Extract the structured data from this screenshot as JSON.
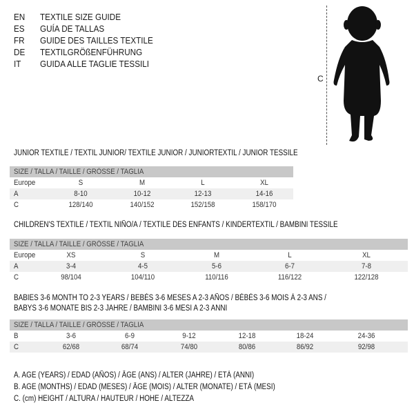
{
  "languages": [
    {
      "code": "EN",
      "title": "TEXTILE SIZE GUIDE"
    },
    {
      "code": "ES",
      "title": "GUÍA DE TALLAS"
    },
    {
      "code": "FR",
      "title": "GUIDE DES TAILLES TEXTILE"
    },
    {
      "code": "DE",
      "title": "TEXTILGRÖßENFÜHRUNG"
    },
    {
      "code": "IT",
      "title": "GUIDA ALLE TAGLIE TESSILI"
    }
  ],
  "figure": {
    "height_label": "C",
    "icon": "baby-silhouette-icon"
  },
  "tables": [
    {
      "heading": [
        "JUNIOR TEXTILE / TEXTIL JUNIOR/ TEXTILE JUNIOR / JUNIORTEXTIL / JUNIOR TESSILE"
      ],
      "header": "SIZE / TALLA / TAILLE / GRÖSSE / TAGLIA",
      "rows": [
        {
          "label": "Europe",
          "values": [
            "S",
            "M",
            "L",
            "XL"
          ]
        },
        {
          "label": "A",
          "values": [
            "8-10",
            "10-12",
            "12-13",
            "14-16"
          ]
        },
        {
          "label": "C",
          "values": [
            "128/140",
            "140/152",
            "152/158",
            "158/170"
          ]
        }
      ]
    },
    {
      "heading": [
        "CHILDREN'S TEXTILE / TEXTIL NIÑO/A / TEXTILE DES ENFANTS / KINDERTEXTIL / BAMBINI TESSILE"
      ],
      "header": "SIZE / TALLA / TAILLE / GRÖSSE / TAGLIA",
      "rows": [
        {
          "label": "Europe",
          "values": [
            "XS",
            "S",
            "M",
            "L",
            "XL"
          ]
        },
        {
          "label": "A",
          "values": [
            "3-4",
            "4-5",
            "5-6",
            "6-7",
            "7-8"
          ]
        },
        {
          "label": "C",
          "values": [
            "98/104",
            "104/110",
            "110/116",
            "116/122",
            "122/128"
          ]
        }
      ]
    },
    {
      "heading": [
        "BABIES 3-6 MONTH TO 2-3 YEARS / BEBÉS 3-6 MESES A 2-3 AÑOS / BÉBÉS 3-6 MOIS À 2-3 ANS /",
        "BABYS 3-6 MONATE BIS 2-3 JAHRE / BAMBINI 3-6 MESI A 2-3 ANNI"
      ],
      "header": "SIZE / TALLA / TAILLE / GRÖSSE / TAGLIA",
      "rows": [
        {
          "label": "B",
          "values": [
            "3-6",
            "6-9",
            "9-12",
            "12-18",
            "18-24",
            "24-36"
          ]
        },
        {
          "label": "C",
          "values": [
            "62/68",
            "68/74",
            "74/80",
            "80/86",
            "86/92",
            "92/98"
          ]
        }
      ]
    }
  ],
  "legend": [
    "A. AGE (YEARS) / EDAD (AÑOS) / ÂGE (ANS) / ALTER (JAHRE) / ETÀ (ANNI)",
    "B. AGE (MONTHS) / EDAD (MESES) / ÂGE (MOIS) / ALTER (MONATE) / ETÀ (MESI)",
    "C. (cm) HEIGHT / ALTURA / HAUTEUR / HÖHE / ALTEZZA"
  ]
}
